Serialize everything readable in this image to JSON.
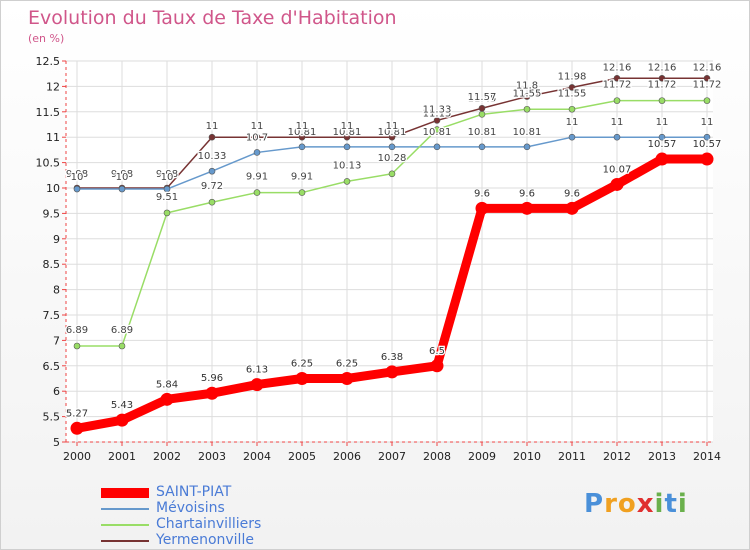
{
  "chart_data": {
    "type": "line",
    "title": "Evolution du Taux de Taxe d'Habitation",
    "unit_label": "(en %)",
    "x": [
      "2000",
      "2001",
      "2002",
      "2003",
      "2004",
      "2005",
      "2006",
      "2007",
      "2008",
      "2009",
      "2010",
      "2011",
      "2012",
      "2013",
      "2014"
    ],
    "ylim": [
      5,
      12.5
    ],
    "yticks": [
      5,
      5.5,
      6,
      6.5,
      7,
      7.5,
      8,
      8.5,
      9,
      9.5,
      10,
      10.5,
      11,
      11.5,
      12,
      12.5
    ],
    "ytick_labels": [
      "5",
      "5.5",
      "6",
      "6.5",
      "7",
      "7.5",
      "8",
      "8.5",
      "9",
      "9.5",
      "10",
      "10.5",
      "11",
      "11.5",
      "12",
      "12.5"
    ],
    "grid": true,
    "legend_position": "bottom-left",
    "series": [
      {
        "name": "SAINT-PIAT",
        "color": "#ff0000",
        "values": [
          5.27,
          5.43,
          5.84,
          5.96,
          6.13,
          6.25,
          6.25,
          6.38,
          6.5,
          9.6,
          9.6,
          9.6,
          10.07,
          10.57,
          10.57
        ],
        "labels": [
          "5.27",
          "5.43",
          "5.84",
          "5.96",
          "6.13",
          "6.25",
          "6.25",
          "6.38",
          "6.5",
          "9.6",
          "9.6",
          "9.6",
          "10.07",
          "10.57",
          "10.57"
        ]
      },
      {
        "name": "Mévoisins",
        "color": "#6699cc",
        "values": [
          9.98,
          9.98,
          9.98,
          10.33,
          10.7,
          10.81,
          10.81,
          10.81,
          10.81,
          10.81,
          10.81,
          11,
          11,
          11,
          11
        ],
        "labels": [
          "9.98",
          "9.98",
          "9.98",
          "10.33",
          "10.7",
          "10.81",
          "10.81",
          "10.81",
          "10.81",
          "10.81",
          "10.81",
          "11",
          "11",
          "11",
          "11"
        ]
      },
      {
        "name": "Chartainvilliers",
        "color": "#99dd66",
        "values": [
          6.89,
          6.89,
          9.51,
          9.72,
          9.91,
          9.91,
          10.13,
          10.28,
          11.15,
          11.45,
          11.55,
          11.55,
          11.72,
          11.72,
          11.72
        ],
        "labels": [
          "6.89",
          "6.89",
          "9.51",
          "9.72",
          "9.91",
          "9.91",
          "10.13",
          "10.28",
          "11.15",
          "11.45",
          "11.55",
          "11.55",
          "11.72",
          "11.72",
          "11.72"
        ]
      },
      {
        "name": "Yermenonville",
        "color": "#773333",
        "values": [
          10,
          10,
          10,
          11,
          11,
          11,
          11,
          11,
          11.33,
          11.57,
          11.8,
          11.98,
          12.16,
          12.16,
          12.16
        ],
        "labels": [
          "10",
          "10",
          "10",
          "11",
          "11",
          "11",
          "11",
          "11",
          "11.33",
          "11.57",
          "11.8",
          "11.98",
          "12.16",
          "12.16",
          "12.16"
        ]
      }
    ]
  },
  "legend": {
    "items": [
      {
        "label": "SAINT-PIAT",
        "color": "#ff0000"
      },
      {
        "label": "Mévoisins",
        "color": "#6699cc"
      },
      {
        "label": "Chartainvilliers",
        "color": "#99dd66"
      },
      {
        "label": "Yermenonville",
        "color": "#773333"
      }
    ]
  },
  "logo": {
    "letters": [
      "P",
      "r",
      "o",
      "x",
      "i",
      "t",
      "i"
    ],
    "colors": [
      "#4a90d9",
      "#f0a020",
      "#f0a020",
      "#e03030",
      "#6ab04c",
      "#4a90d9",
      "#6ab04c"
    ]
  }
}
